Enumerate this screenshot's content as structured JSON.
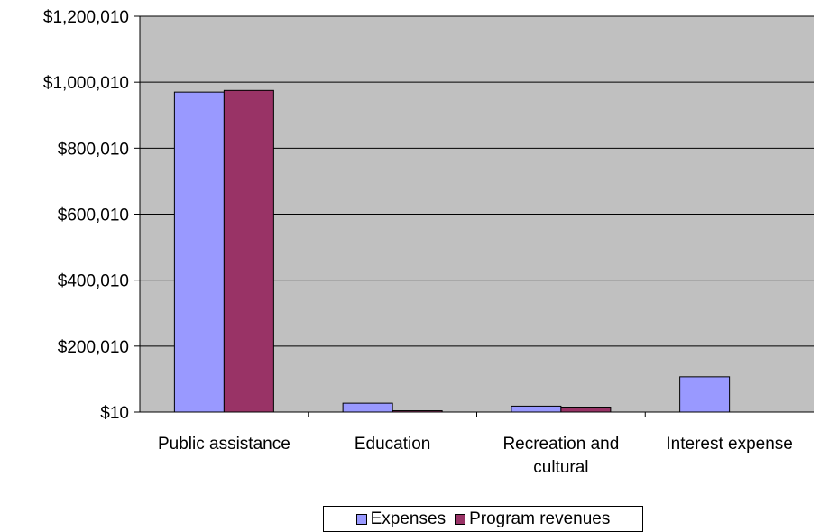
{
  "chart_data": {
    "type": "bar",
    "title": "",
    "xlabel": "",
    "ylabel": "",
    "ylim": [
      10,
      1200010
    ],
    "yticks": [
      10,
      200010,
      400010,
      600010,
      800010,
      1000010,
      1200010
    ],
    "ytick_labels": [
      "$10",
      "$200,010",
      "$400,010",
      "$600,010",
      "$800,010",
      "$1,000,010",
      "$1,200,010"
    ],
    "categories": [
      [
        "Public assistance"
      ],
      [
        "Education"
      ],
      [
        "Recreation and",
        "cultural"
      ],
      [
        "Interest expense"
      ]
    ],
    "series": [
      {
        "name": "Expenses",
        "color": "#9999ff",
        "values": [
          970000,
          27000,
          18000,
          107000
        ]
      },
      {
        "name": "Program revenues",
        "color": "#993366",
        "values": [
          975000,
          4000,
          15000,
          0
        ]
      }
    ],
    "plot_background": "#c0c0c0",
    "grid": true,
    "legend_position": "bottom"
  }
}
